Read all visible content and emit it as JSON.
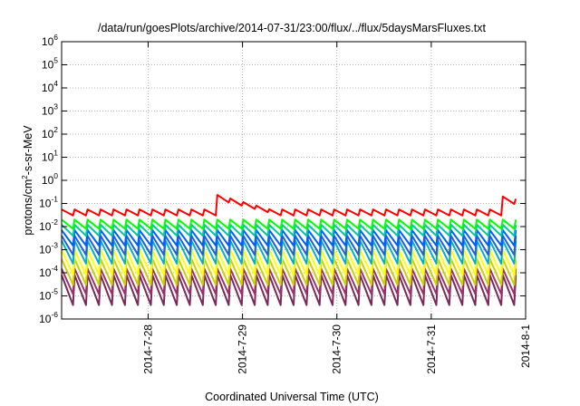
{
  "chart_data": {
    "type": "line",
    "title": "/data/run/goesPlots/archive/2014-07-31/23:00/flux/../flux/5daysMarsFluxes.txt",
    "xlabel": "Coordinated Universal Time (UTC)",
    "ylabel": {
      "pre": "protons/cm",
      "sup": "2",
      "post": "-s-sr-MeV"
    },
    "x_range_days": [
      "2014-07-27T02:00",
      "2014-08-01T00:00"
    ],
    "xticks": [
      {
        "date": "2014-07-28",
        "label": "2014-7-28"
      },
      {
        "date": "2014-07-29",
        "label": "2014-7-29"
      },
      {
        "date": "2014-07-30",
        "label": "2014-7-30"
      },
      {
        "date": "2014-07-31",
        "label": "2014-7-31"
      },
      {
        "date": "2014-08-01",
        "label": "2014-8-1"
      }
    ],
    "y_scale": "log",
    "ylim": [
      1e-06,
      1000000.0
    ],
    "yticks": [
      {
        "value": 1e-06,
        "base": "10",
        "exp": "-6"
      },
      {
        "value": 1e-05,
        "base": "10",
        "exp": "-5"
      },
      {
        "value": 0.0001,
        "base": "10",
        "exp": "-4"
      },
      {
        "value": 0.001,
        "base": "10",
        "exp": "-3"
      },
      {
        "value": 0.01,
        "base": "10",
        "exp": "-2"
      },
      {
        "value": 0.1,
        "base": "10",
        "exp": "-1"
      },
      {
        "value": 1.0,
        "base": "10",
        "exp": "0"
      },
      {
        "value": 10.0,
        "base": "10",
        "exp": "1"
      },
      {
        "value": 100.0,
        "base": "10",
        "exp": "2"
      },
      {
        "value": 1000.0,
        "base": "10",
        "exp": "3"
      },
      {
        "value": 10000.0,
        "base": "10",
        "exp": "4"
      },
      {
        "value": 100000.0,
        "base": "10",
        "exp": "5"
      },
      {
        "value": 1000000.0,
        "base": "10",
        "exp": "6"
      }
    ],
    "grid": true,
    "legend": "none",
    "orbit_period_hours": 3.3,
    "series": [
      {
        "color": "#ff0000",
        "peak": 0.055,
        "trough": 0.03,
        "event_peaks": [
          {
            "date": "2014-07-28T17:00",
            "value": 0.25
          },
          {
            "date": "2014-07-31T19:00",
            "value": 0.2
          }
        ]
      },
      {
        "color": "#00ff00",
        "peak": 0.02,
        "trough": 0.008
      },
      {
        "color": "#00c8a0",
        "peak": 0.012,
        "trough": 0.004
      },
      {
        "color": "#0060ff",
        "peak": 0.007,
        "trough": 0.0015
      },
      {
        "color": "#2060d8",
        "peak": 0.004,
        "trough": 0.0006
      },
      {
        "color": "#00b0c8",
        "peak": 0.0025,
        "trough": 0.00025
      },
      {
        "color": "#ffff00",
        "peak": 0.001,
        "trough": 8e-05
      },
      {
        "color": "#c8d000",
        "peak": 0.0004,
        "trough": 3e-05
      },
      {
        "color": "#993366",
        "peak": 0.00015,
        "trough": 1.2e-05
      },
      {
        "color": "#7a2a5a",
        "peak": 8e-05,
        "trough": 4e-06
      }
    ]
  }
}
